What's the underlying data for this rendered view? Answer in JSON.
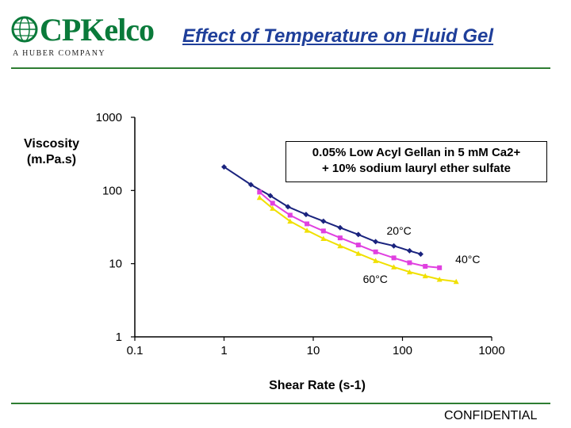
{
  "header": {
    "logo_text": "CPKelco",
    "logo_subtitle": "A HUBER COMPANY",
    "title": "Effect of Temperature on Fluid Gel"
  },
  "footer": {
    "confidential": "CONFIDENTIAL"
  },
  "colors": {
    "title": "#1f3f9a",
    "rule": "#2e7d32",
    "logo": "#0a7a3a"
  },
  "chart_data": {
    "type": "line",
    "xscale": "log",
    "yscale": "log",
    "xlim": [
      0.1,
      1000
    ],
    "ylim": [
      1,
      1000
    ],
    "xlabel": "Shear Rate (s-1)",
    "ylabel": "Viscosity (m.Pa.s)",
    "x_tick_labels": [
      "0.1",
      "1",
      "10",
      "100",
      "1000"
    ],
    "y_tick_labels": [
      "1",
      "10",
      "100",
      "1000"
    ],
    "annotation_line1": "0.05% Low Acyl Gellan in 5 mM Ca2+",
    "annotation_line2": "+ 10% sodium lauryl ether sulfate",
    "series": [
      {
        "name": "20°C",
        "color": "#1a237e",
        "marker": "diamond",
        "x": [
          1.0,
          2.0,
          3.3,
          5.2,
          8.3,
          13,
          20,
          32,
          50,
          80,
          120,
          160
        ],
        "y": [
          210,
          120,
          85,
          60,
          47,
          38,
          31,
          25,
          20,
          17.5,
          15,
          13.5
        ]
      },
      {
        "name": "40°C",
        "color": "#e040e0",
        "marker": "square",
        "x": [
          2.5,
          3.5,
          5.5,
          8.5,
          13,
          20,
          32,
          50,
          80,
          120,
          180,
          260
        ],
        "y": [
          95,
          67,
          46,
          35,
          28,
          22.5,
          18,
          14.5,
          12,
          10.3,
          9.2,
          8.8
        ]
      },
      {
        "name": "60°C",
        "color": "#f0e000",
        "marker": "triangle",
        "x": [
          2.5,
          3.5,
          5.5,
          8.5,
          13,
          20,
          32,
          50,
          80,
          120,
          180,
          260,
          400
        ],
        "y": [
          80,
          57,
          38,
          28.5,
          22,
          17.5,
          13.8,
          11,
          9,
          7.7,
          6.8,
          6.1,
          5.7
        ]
      }
    ],
    "series_label_positions": {
      "20°C": "right-middle",
      "40°C": "right-end",
      "60°C": "below-middle"
    },
    "grid": false,
    "legend": "none"
  }
}
